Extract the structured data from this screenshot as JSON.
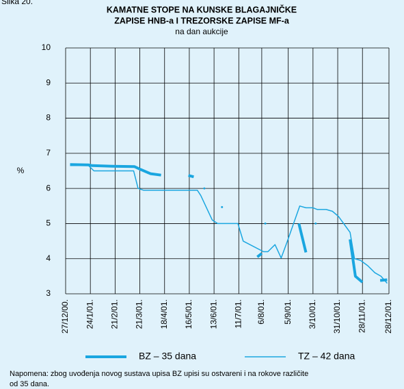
{
  "chart_data": {
    "type": "line",
    "figure_label": "Slika 20.",
    "title": [
      "KAMATNE STOPE NA KUNSKE BLAGAJNIČKE",
      "ZAPISE HNB-a I TREZORSKE ZAPISE MF-a"
    ],
    "subtitle": "na dan aukcije",
    "y_label": "%",
    "xlim": [
      "2000-12-27",
      "2001-12-28"
    ],
    "xticks": [
      {
        "value": "2000-12-27",
        "label": "27/12/00."
      },
      {
        "value": "2001-01-24",
        "label": "24/1/01."
      },
      {
        "value": "2001-02-21",
        "label": "21/2/01."
      },
      {
        "value": "2001-03-21",
        "label": "21/3/01."
      },
      {
        "value": "2001-04-18",
        "label": "18/4/01."
      },
      {
        "value": "2001-05-16",
        "label": "16/5/01."
      },
      {
        "value": "2001-06-13",
        "label": "13/6/01."
      },
      {
        "value": "2001-07-11",
        "label": "11/7/01."
      },
      {
        "value": "2001-08-06",
        "label": "6/8/01."
      },
      {
        "value": "2001-09-05",
        "label": "5/9/01."
      },
      {
        "value": "2001-10-03",
        "label": "3/10/01."
      },
      {
        "value": "2001-10-31",
        "label": "31/10/01."
      },
      {
        "value": "2001-11-28",
        "label": "28/11/01."
      },
      {
        "value": "2001-12-28",
        "label": "28/12/01."
      }
    ],
    "ylim": [
      3,
      10
    ],
    "yticks": [
      3,
      4,
      5,
      6,
      7,
      8,
      9,
      10
    ],
    "grid": true,
    "series": [
      {
        "name": "BZ – 35 dana",
        "color": "#1aa6e0",
        "line_width": 4,
        "x": [
          "2001-01-01",
          "2001-01-22",
          "2001-01-26",
          "2001-02-18",
          "2001-03-15",
          "2001-03-21",
          "2001-04-02",
          "2001-04-14",
          null,
          "2001-05-15",
          "2001-05-21",
          null,
          "2001-08-01",
          "2001-08-06",
          null,
          "2001-09-17",
          "2001-09-25",
          null,
          "2001-11-14",
          "2001-11-20",
          "2001-11-28",
          null,
          "2001-12-18",
          "2001-12-26"
        ],
        "values": [
          6.68,
          6.67,
          6.65,
          6.63,
          6.62,
          6.55,
          6.42,
          6.38,
          null,
          6.37,
          6.33,
          null,
          4.05,
          4.15,
          null,
          5.0,
          4.18,
          null,
          4.55,
          3.5,
          3.33,
          null,
          3.38,
          3.4
        ]
      },
      {
        "name": "TZ – 42 dana",
        "color": "#1aa6e0",
        "line_width": 1.5,
        "x": [
          "2001-01-01",
          "2001-01-22",
          "2001-01-28",
          "2001-03-14",
          "2001-03-19",
          "2001-03-25",
          "2001-05-25",
          "2001-05-29",
          "2001-06-11",
          "2001-06-17",
          "2001-07-10",
          "2001-07-16",
          "2001-08-08",
          "2001-08-13",
          "2001-08-21",
          "2001-08-28",
          "2001-09-04",
          "2001-09-18",
          "2001-09-25",
          "2001-10-03",
          "2001-10-08",
          "2001-10-18",
          "2001-10-25",
          "2001-11-01",
          "2001-11-14",
          "2001-11-19",
          "2001-11-26",
          "2001-12-04",
          "2001-12-12",
          "2001-12-19",
          "2001-12-26",
          null,
          "2001-06-02",
          null,
          "2001-06-22",
          null,
          "2001-08-10",
          null,
          "2001-10-06"
        ],
        "values": [
          6.65,
          6.65,
          6.5,
          6.5,
          6.0,
          5.95,
          5.95,
          5.8,
          5.1,
          5.0,
          5.0,
          4.5,
          4.2,
          4.2,
          4.4,
          4.02,
          4.5,
          5.5,
          5.45,
          5.45,
          5.4,
          5.4,
          5.35,
          5.2,
          4.75,
          4.0,
          3.95,
          3.8,
          3.6,
          3.5,
          3.3,
          null,
          6.0,
          null,
          5.47,
          null,
          5.0,
          null,
          5.0
        ]
      }
    ],
    "note": [
      "Napomena: zbog uvođenja novog sustava upisa BZ upisi su ostvareni i na rokove različite",
      "od 35 dana."
    ]
  }
}
